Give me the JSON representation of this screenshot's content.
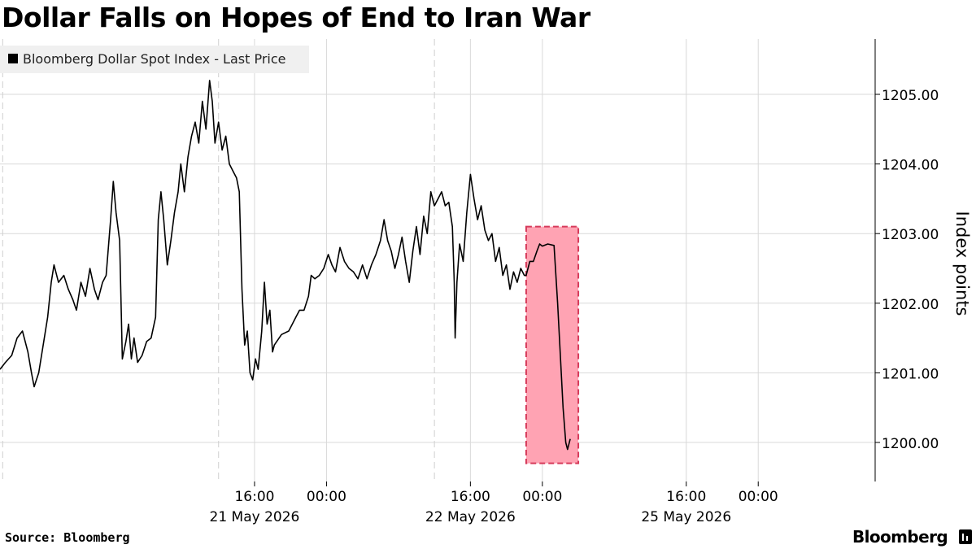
{
  "chart_data": {
    "type": "line",
    "title": "Dollar Falls on Hopes of End to Iran War",
    "legend": {
      "label": "Bloomberg Dollar Spot Index - Last Price",
      "placement": "top-left",
      "color": "#000000"
    },
    "ylabel": "Index points",
    "ylim": [
      1199.5,
      1205.8
    ],
    "yticks": [
      1200,
      1201,
      1202,
      1203,
      1204,
      1205
    ],
    "ytick_labels": [
      "1200.00",
      "1201.00",
      "1202.00",
      "1203.00",
      "1204.00",
      "1205.00"
    ],
    "xlim": [
      -12.3,
      85.0
    ],
    "x_unit": "hours from 21 May 2026 00:00",
    "xticks": [
      {
        "hour": 16,
        "time": "16:00",
        "date": "21 May 2026"
      },
      {
        "hour": 24,
        "time": "00:00",
        "date": ""
      },
      {
        "hour": 40,
        "time": "16:00",
        "date": "22 May 2026"
      },
      {
        "hour": 48,
        "time": "00:00",
        "date": ""
      },
      {
        "hour": 64,
        "time": "16:00",
        "date": "25 May 2026"
      },
      {
        "hour": 72,
        "time": "00:00",
        "date": ""
      }
    ],
    "day_separators": [
      -12.0,
      12.0,
      36.0
    ],
    "grid": true,
    "series": [
      {
        "name": "Bloomberg Dollar Spot Index - Last Price",
        "color": "#000000",
        "points": [
          [
            -12.3,
            1201.05
          ],
          [
            -11.7,
            1201.15
          ],
          [
            -11.0,
            1201.25
          ],
          [
            -10.4,
            1201.5
          ],
          [
            -9.8,
            1201.6
          ],
          [
            -9.2,
            1201.3
          ],
          [
            -8.8,
            1201.0
          ],
          [
            -8.5,
            1200.8
          ],
          [
            -8.0,
            1201.0
          ],
          [
            -7.5,
            1201.4
          ],
          [
            -7.0,
            1201.8
          ],
          [
            -6.6,
            1202.3
          ],
          [
            -6.3,
            1202.55
          ],
          [
            -5.8,
            1202.3
          ],
          [
            -5.2,
            1202.4
          ],
          [
            -4.7,
            1202.2
          ],
          [
            -4.2,
            1202.05
          ],
          [
            -3.8,
            1201.9
          ],
          [
            -3.3,
            1202.3
          ],
          [
            -2.8,
            1202.1
          ],
          [
            -2.3,
            1202.5
          ],
          [
            -1.8,
            1202.2
          ],
          [
            -1.4,
            1202.05
          ],
          [
            -0.9,
            1202.3
          ],
          [
            -0.5,
            1202.4
          ],
          [
            0.0,
            1203.2
          ],
          [
            0.3,
            1203.75
          ],
          [
            0.6,
            1203.3
          ],
          [
            1.0,
            1202.9
          ],
          [
            1.3,
            1201.2
          ],
          [
            1.7,
            1201.45
          ],
          [
            2.0,
            1201.7
          ],
          [
            2.3,
            1201.2
          ],
          [
            2.6,
            1201.5
          ],
          [
            3.0,
            1201.15
          ],
          [
            3.5,
            1201.25
          ],
          [
            4.0,
            1201.45
          ],
          [
            4.5,
            1201.5
          ],
          [
            5.0,
            1201.8
          ],
          [
            5.3,
            1203.2
          ],
          [
            5.6,
            1203.6
          ],
          [
            5.9,
            1203.2
          ],
          [
            6.3,
            1202.55
          ],
          [
            6.7,
            1202.9
          ],
          [
            7.1,
            1203.3
          ],
          [
            7.5,
            1203.6
          ],
          [
            7.8,
            1204.0
          ],
          [
            8.2,
            1203.6
          ],
          [
            8.6,
            1204.1
          ],
          [
            9.0,
            1204.4
          ],
          [
            9.4,
            1204.6
          ],
          [
            9.8,
            1204.3
          ],
          [
            10.2,
            1204.9
          ],
          [
            10.6,
            1204.5
          ],
          [
            11.0,
            1205.2
          ],
          [
            11.3,
            1204.9
          ],
          [
            11.6,
            1204.3
          ],
          [
            12.0,
            1204.6
          ],
          [
            12.4,
            1204.2
          ],
          [
            12.8,
            1204.4
          ],
          [
            13.2,
            1204.0
          ],
          [
            13.6,
            1203.9
          ],
          [
            14.0,
            1203.8
          ],
          [
            14.3,
            1203.6
          ],
          [
            14.6,
            1202.2
          ],
          [
            14.9,
            1201.4
          ],
          [
            15.2,
            1201.6
          ],
          [
            15.5,
            1201.0
          ],
          [
            15.8,
            1200.9
          ],
          [
            16.1,
            1201.2
          ],
          [
            16.4,
            1201.05
          ],
          [
            16.8,
            1201.6
          ],
          [
            17.1,
            1202.3
          ],
          [
            17.4,
            1201.7
          ],
          [
            17.7,
            1201.9
          ],
          [
            18.0,
            1201.3
          ],
          [
            18.2,
            1201.4
          ],
          [
            19.0,
            1201.55
          ],
          [
            19.8,
            1201.6
          ],
          [
            20.2,
            1201.7
          ],
          [
            20.6,
            1201.8
          ],
          [
            21.0,
            1201.9
          ],
          [
            21.5,
            1201.9
          ],
          [
            22.0,
            1202.1
          ],
          [
            22.3,
            1202.4
          ],
          [
            22.7,
            1202.35
          ],
          [
            23.2,
            1202.4
          ],
          [
            23.7,
            1202.5
          ],
          [
            24.2,
            1202.7
          ],
          [
            24.6,
            1202.55
          ],
          [
            25.0,
            1202.45
          ],
          [
            25.5,
            1202.8
          ],
          [
            26.0,
            1202.6
          ],
          [
            26.5,
            1202.5
          ],
          [
            27.0,
            1202.45
          ],
          [
            27.5,
            1202.35
          ],
          [
            28.0,
            1202.55
          ],
          [
            28.5,
            1202.35
          ],
          [
            29.0,
            1202.55
          ],
          [
            29.5,
            1202.7
          ],
          [
            30.0,
            1202.9
          ],
          [
            30.4,
            1203.2
          ],
          [
            30.8,
            1202.9
          ],
          [
            31.2,
            1202.75
          ],
          [
            31.6,
            1202.5
          ],
          [
            32.0,
            1202.7
          ],
          [
            32.4,
            1202.95
          ],
          [
            32.8,
            1202.6
          ],
          [
            33.2,
            1202.3
          ],
          [
            33.6,
            1202.75
          ],
          [
            34.0,
            1203.1
          ],
          [
            34.4,
            1202.7
          ],
          [
            34.8,
            1203.25
          ],
          [
            35.2,
            1203.0
          ],
          [
            35.6,
            1203.6
          ],
          [
            36.0,
            1203.4
          ],
          [
            36.4,
            1203.5
          ],
          [
            36.8,
            1203.6
          ],
          [
            37.2,
            1203.4
          ],
          [
            37.6,
            1203.45
          ],
          [
            38.0,
            1203.1
          ],
          [
            38.2,
            1202.3
          ],
          [
            38.3,
            1201.5
          ],
          [
            38.5,
            1202.3
          ],
          [
            38.8,
            1202.85
          ],
          [
            39.2,
            1202.6
          ],
          [
            39.6,
            1203.3
          ],
          [
            40.0,
            1203.85
          ],
          [
            40.4,
            1203.5
          ],
          [
            40.8,
            1203.2
          ],
          [
            41.2,
            1203.4
          ],
          [
            41.6,
            1203.05
          ],
          [
            42.0,
            1202.9
          ],
          [
            42.4,
            1203.0
          ],
          [
            42.8,
            1202.6
          ],
          [
            43.2,
            1202.8
          ],
          [
            43.6,
            1202.4
          ],
          [
            44.0,
            1202.55
          ],
          [
            44.4,
            1202.2
          ],
          [
            44.8,
            1202.45
          ],
          [
            45.2,
            1202.3
          ],
          [
            45.6,
            1202.5
          ],
          [
            46.0,
            1202.4
          ],
          [
            46.2,
            1202.4
          ],
          [
            46.6,
            1202.6
          ],
          [
            47.0,
            1202.6
          ],
          [
            47.4,
            1202.75
          ],
          [
            47.7,
            1202.85
          ],
          [
            48.0,
            1202.82
          ],
          [
            48.6,
            1202.85
          ],
          [
            49.3,
            1202.83
          ],
          [
            49.7,
            1202.0
          ],
          [
            50.3,
            1200.5
          ],
          [
            50.6,
            1200.0
          ],
          [
            50.8,
            1199.9
          ],
          [
            51.1,
            1200.05
          ]
        ]
      }
    ],
    "annotations": [
      {
        "type": "highlight-box",
        "x0": 46.2,
        "x1": 52.0,
        "y0": 1199.7,
        "y1": 1203.1,
        "color": "#ff6f8a"
      }
    ]
  },
  "source_text": "Source: Bloomberg",
  "brand_text": "Bloomberg"
}
